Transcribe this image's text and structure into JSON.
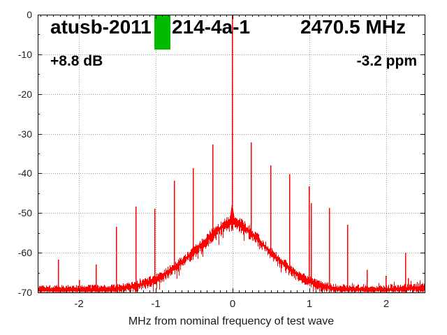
{
  "chart_data": {
    "type": "line",
    "subtype": "rf-spectrum",
    "title_parts": {
      "left": "atusb-2011",
      "mid": "214-4a-1",
      "right": "2470.5 MHz"
    },
    "annotations": {
      "power": "+8.8 dB",
      "ppm": "-3.2 ppm"
    },
    "xlabel": "MHz from nominal frequency of test wave",
    "xlim": [
      -2.536,
      2.5
    ],
    "ylim": [
      -70,
      0
    ],
    "x_ticks": {
      "values": [
        -2,
        -1,
        0,
        1,
        2
      ],
      "labels": [
        "-2",
        "-1",
        "0",
        "1",
        "2"
      ],
      "minor_divisions": 12
    },
    "y_ticks": {
      "values": [
        0,
        -10,
        -20,
        -30,
        -40,
        -50,
        -60,
        -70
      ],
      "labels": [
        "0",
        "-10",
        "-20",
        "-30",
        "-40",
        "-50",
        "-60",
        "-70"
      ],
      "minor_step": 5
    },
    "grid": {
      "show": true,
      "color": "#9a9a9a",
      "style": "dotted"
    },
    "colors": {
      "trace": "#ff0000",
      "marker": "#00bb00",
      "axis": "#000000",
      "tick_label": "#202020"
    },
    "marker_bar": {
      "x0": -1.018,
      "x1": -0.809,
      "db_top": 0,
      "db_bottom": -8.8
    },
    "center_line": {
      "x": -0.009,
      "top_db": 0
    },
    "pedestal": {
      "x": -0.005,
      "top_db": -47.2,
      "half_width_mhz": 0.038
    },
    "noise": {
      "seed": 1337,
      "base_amp_db": 1.0
    },
    "envelope_db": [
      [
        -2.54,
        -69.2
      ],
      [
        -2.2,
        -69.25
      ],
      [
        -2.0,
        -69.2
      ],
      [
        -1.8,
        -69.2
      ],
      [
        -1.6,
        -69.1
      ],
      [
        -1.5,
        -69.0
      ],
      [
        -1.4,
        -68.8
      ],
      [
        -1.3,
        -68.45
      ],
      [
        -1.2,
        -67.95
      ],
      [
        -1.1,
        -67.3
      ],
      [
        -1.0,
        -66.5
      ],
      [
        -0.9,
        -65.5
      ],
      [
        -0.8,
        -64.2
      ],
      [
        -0.7,
        -62.8
      ],
      [
        -0.6,
        -61.2
      ],
      [
        -0.5,
        -59.6
      ],
      [
        -0.4,
        -57.8
      ],
      [
        -0.3,
        -55.9
      ],
      [
        -0.2,
        -54.2
      ],
      [
        -0.1,
        -52.9
      ],
      [
        -0.03,
        -52.3
      ],
      [
        0.03,
        -52.3
      ],
      [
        0.1,
        -52.9
      ],
      [
        0.2,
        -54.3
      ],
      [
        0.3,
        -56.1
      ],
      [
        0.4,
        -58.1
      ],
      [
        0.5,
        -60.0
      ],
      [
        0.6,
        -61.8
      ],
      [
        0.7,
        -63.4
      ],
      [
        0.8,
        -64.9
      ],
      [
        0.9,
        -66.1
      ],
      [
        1.0,
        -67.1
      ],
      [
        1.1,
        -67.9
      ],
      [
        1.2,
        -68.5
      ],
      [
        1.3,
        -68.9
      ],
      [
        1.45,
        -69.1
      ],
      [
        1.7,
        -69.2
      ],
      [
        2.0,
        -69.2
      ],
      [
        2.2,
        -69.05
      ],
      [
        2.35,
        -68.9
      ],
      [
        2.5,
        -68.75
      ]
    ],
    "spikes_db": [
      [
        -2.27,
        -61.7
      ],
      [
        -2.0,
        -66.8
      ],
      [
        -1.785,
        -63.0
      ],
      [
        -1.515,
        -53.5
      ],
      [
        -1.26,
        -48.4
      ],
      [
        -1.02,
        -48.9
      ],
      [
        -0.765,
        -41.9
      ],
      [
        -0.515,
        -38.7
      ],
      [
        -0.265,
        -32.7
      ],
      [
        0.24,
        -32.2
      ],
      [
        0.49,
        -38.0
      ],
      [
        0.735,
        -40.2
      ],
      [
        0.995,
        -43.3
      ],
      [
        1.015,
        -47.5
      ],
      [
        1.25,
        -48.7
      ],
      [
        1.49,
        -52.9
      ],
      [
        1.745,
        -64.3
      ],
      [
        1.99,
        -65.8
      ],
      [
        2.245,
        -60.0
      ],
      [
        2.285,
        -66.4
      ]
    ],
    "blips_db": [
      [
        -2.46,
        -68.2
      ],
      [
        -2.41,
        -68.6
      ],
      [
        -2.33,
        -68.8
      ],
      [
        -2.12,
        -68.4
      ],
      [
        -1.94,
        -68.5
      ],
      [
        -1.86,
        -68.8
      ],
      [
        -1.64,
        -68.5
      ],
      [
        -1.58,
        -68.2
      ],
      [
        -1.205,
        -66.5
      ],
      [
        1.12,
        -67.7
      ],
      [
        1.18,
        -68.1
      ],
      [
        1.35,
        -68.3
      ],
      [
        1.42,
        -68.6
      ],
      [
        1.55,
        -67.6
      ],
      [
        1.63,
        -68.0
      ],
      [
        1.7,
        -67.9
      ],
      [
        1.82,
        -68.4
      ],
      [
        1.9,
        -67.6
      ],
      [
        1.96,
        -68.2
      ],
      [
        2.05,
        -67.9
      ],
      [
        2.1,
        -67.3
      ],
      [
        2.17,
        -68.5
      ],
      [
        2.32,
        -67.1
      ],
      [
        2.36,
        -67.9
      ],
      [
        2.4,
        -67.4
      ],
      [
        2.44,
        -66.9
      ],
      [
        2.47,
        -67.6
      ]
    ]
  }
}
